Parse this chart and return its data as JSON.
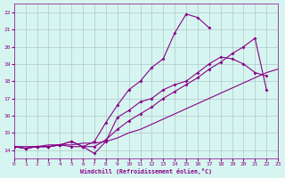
{
  "xlabel": "Windchill (Refroidissement éolien,°C)",
  "background_color": "#d6f5f0",
  "grid_color": "#b0c8c8",
  "line_color": "#880088",
  "xlim": [
    0,
    23
  ],
  "ylim": [
    13.5,
    22.5
  ],
  "xticks": [
    0,
    1,
    2,
    3,
    4,
    5,
    6,
    7,
    8,
    9,
    10,
    11,
    12,
    13,
    14,
    15,
    16,
    17,
    18,
    19,
    20,
    21,
    22,
    23
  ],
  "yticks": [
    14,
    15,
    16,
    17,
    18,
    19,
    20,
    21,
    22
  ],
  "lines": [
    {
      "x": [
        0,
        1,
        2,
        3,
        4,
        5,
        6,
        7,
        8,
        9,
        10,
        11,
        12,
        13,
        14,
        15,
        16,
        17
      ],
      "y": [
        14.2,
        14.1,
        14.2,
        14.2,
        14.3,
        14.5,
        14.2,
        14.5,
        15.6,
        16.6,
        17.5,
        18.0,
        18.8,
        19.3,
        20.8,
        21.9,
        21.7,
        21.1
      ],
      "marker": true
    },
    {
      "x": [
        0,
        1,
        2,
        3,
        4,
        5,
        6,
        7,
        8,
        9,
        10,
        11,
        12,
        13,
        14,
        15,
        16,
        17,
        18,
        19,
        20,
        21,
        22
      ],
      "y": [
        14.2,
        14.1,
        14.2,
        14.2,
        14.3,
        14.5,
        14.2,
        13.8,
        14.5,
        15.9,
        16.3,
        16.8,
        17.0,
        17.5,
        17.8,
        18.0,
        18.5,
        19.0,
        19.4,
        19.3,
        19.0,
        18.5,
        18.3
      ],
      "marker": true
    },
    {
      "x": [
        0,
        1,
        2,
        3,
        4,
        5,
        6,
        7,
        8,
        9,
        10,
        11,
        12,
        13,
        14,
        15,
        16,
        17,
        18,
        19,
        20,
        21,
        22,
        23
      ],
      "y": [
        14.2,
        14.2,
        14.2,
        14.3,
        14.3,
        14.3,
        14.4,
        14.4,
        14.5,
        14.7,
        15.0,
        15.2,
        15.5,
        15.8,
        16.1,
        16.4,
        16.7,
        17.0,
        17.3,
        17.6,
        17.9,
        18.2,
        18.5,
        18.7
      ],
      "marker": false
    },
    {
      "x": [
        0,
        1,
        2,
        3,
        4,
        5,
        6,
        7,
        8,
        9,
        10,
        11,
        12,
        13,
        14,
        15,
        16,
        17,
        18,
        19,
        20,
        21,
        22
      ],
      "y": [
        14.2,
        14.1,
        14.2,
        14.2,
        14.3,
        14.2,
        14.2,
        14.2,
        14.6,
        15.2,
        15.7,
        16.1,
        16.5,
        17.0,
        17.4,
        17.8,
        18.2,
        18.7,
        19.1,
        19.6,
        20.0,
        20.5,
        17.5
      ],
      "marker": true
    }
  ]
}
